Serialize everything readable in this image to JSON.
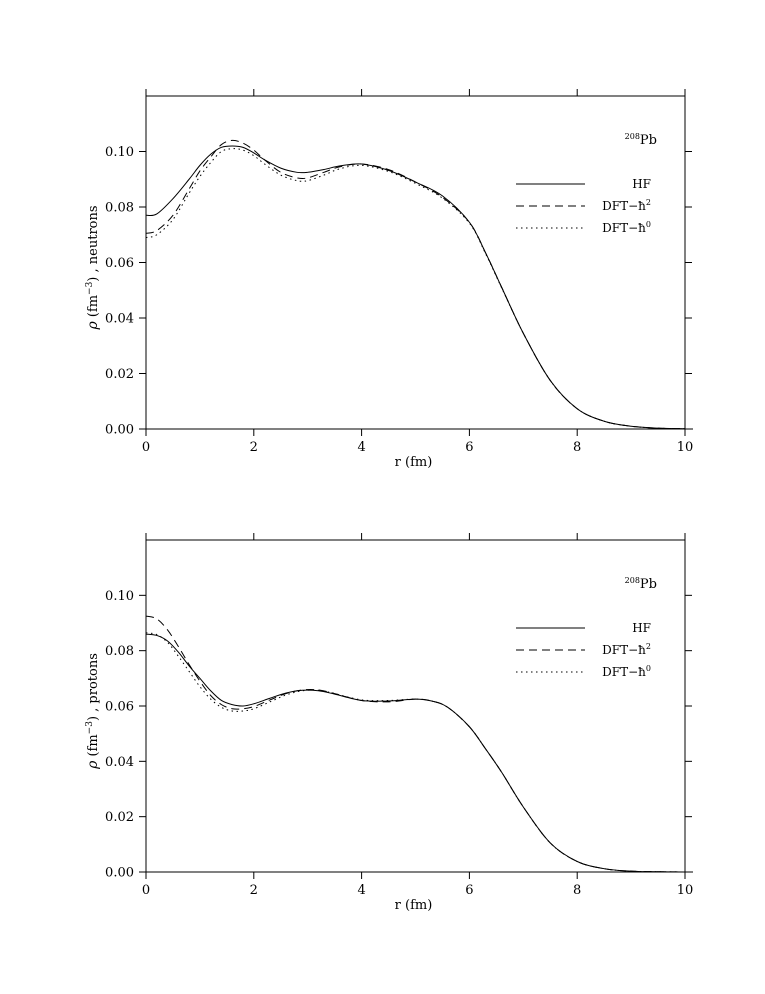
{
  "chart_data": [
    {
      "type": "line",
      "panel": "neutrons",
      "annotation": {
        "mass_number": "208",
        "element": "Pb"
      },
      "xlabel": "r  (fm)",
      "ylabel": {
        "rho": "ρ",
        "unit_open": "(fm",
        "unit_exp": "−3",
        "unit_close": ")",
        "sep": ",",
        "particle": "neutrons"
      },
      "xlim": [
        0,
        10
      ],
      "ylim": [
        0,
        0.12
      ],
      "xticks": [
        "0",
        "2",
        "4",
        "6",
        "8",
        "10"
      ],
      "yticks": [
        "0.00",
        "0.02",
        "0.04",
        "0.06",
        "0.08",
        "0.10"
      ],
      "grid": false,
      "legend_position": "right",
      "series": [
        {
          "name": "HF",
          "legend_base": "HF",
          "legend_exp": "",
          "style": "solid",
          "x": [
            0,
            0.2,
            0.5,
            0.8,
            1.0,
            1.2,
            1.4,
            1.6,
            1.8,
            2.0,
            2.2,
            2.5,
            2.8,
            3.0,
            3.3,
            3.6,
            4.0,
            4.5,
            5.0,
            5.5,
            6.0,
            6.3,
            6.6,
            7.0,
            7.5,
            8.0,
            8.5,
            9.0,
            9.5,
            10.0
          ],
          "y": [
            0.077,
            0.0775,
            0.083,
            0.09,
            0.095,
            0.099,
            0.1015,
            0.102,
            0.1015,
            0.0995,
            0.097,
            0.094,
            0.0925,
            0.0925,
            0.0935,
            0.0948,
            0.0955,
            0.0932,
            0.089,
            0.084,
            0.0745,
            0.0635,
            0.051,
            0.0345,
            0.0175,
            0.0073,
            0.0028,
            0.001,
            0.0003,
            0.0001
          ]
        },
        {
          "name": "DFT-ħ²",
          "legend_base": "DFT−ħ",
          "legend_exp": "2",
          "style": "dashed",
          "x": [
            0,
            0.2,
            0.5,
            0.8,
            1.0,
            1.2,
            1.4,
            1.6,
            1.8,
            2.0,
            2.2,
            2.5,
            2.8,
            3.0,
            3.3,
            3.6,
            4.0,
            4.5,
            5.0,
            5.5,
            6.0,
            6.3,
            6.6,
            7.0,
            7.5,
            8.0,
            8.5,
            9.0,
            9.5,
            10.0
          ],
          "y": [
            0.0705,
            0.0715,
            0.077,
            0.0865,
            0.093,
            0.098,
            0.1025,
            0.104,
            0.103,
            0.1005,
            0.097,
            0.0925,
            0.0905,
            0.0905,
            0.0925,
            0.0945,
            0.0955,
            0.0935,
            0.089,
            0.0835,
            0.0745,
            0.0635,
            0.051,
            0.0345,
            0.0175,
            0.0073,
            0.0028,
            0.001,
            0.0003,
            0.0001
          ]
        },
        {
          "name": "DFT-ħ⁰",
          "legend_base": "DFT−ħ",
          "legend_exp": "0",
          "style": "dotted",
          "x": [
            0,
            0.2,
            0.5,
            0.8,
            1.0,
            1.2,
            1.4,
            1.6,
            1.8,
            2.0,
            2.2,
            2.5,
            2.8,
            3.0,
            3.3,
            3.6,
            4.0,
            4.5,
            5.0,
            5.5,
            6.0,
            6.3,
            6.6,
            7.0,
            7.5,
            8.0,
            8.5,
            9.0,
            9.5,
            10.0
          ],
          "y": [
            0.069,
            0.07,
            0.0755,
            0.085,
            0.091,
            0.096,
            0.1,
            0.101,
            0.1005,
            0.0985,
            0.0955,
            0.0915,
            0.0895,
            0.0895,
            0.0915,
            0.0938,
            0.095,
            0.0928,
            0.0885,
            0.0832,
            0.0742,
            0.0632,
            0.0508,
            0.0345,
            0.0175,
            0.0073,
            0.0028,
            0.001,
            0.0003,
            0.0001
          ]
        }
      ]
    },
    {
      "type": "line",
      "panel": "protons",
      "annotation": {
        "mass_number": "208",
        "element": "Pb"
      },
      "xlabel": "r  (fm)",
      "ylabel": {
        "rho": "ρ",
        "unit_open": "(fm",
        "unit_exp": "−3",
        "unit_close": ")",
        "sep": ",",
        "particle": "protons"
      },
      "xlim": [
        0,
        10
      ],
      "ylim": [
        0,
        0.12
      ],
      "xticks": [
        "0",
        "2",
        "4",
        "6",
        "8",
        "10"
      ],
      "yticks": [
        "0.00",
        "0.02",
        "0.04",
        "0.06",
        "0.08",
        "0.10"
      ],
      "grid": false,
      "legend_position": "right",
      "series": [
        {
          "name": "HF",
          "legend_base": "HF",
          "legend_exp": "",
          "style": "solid",
          "x": [
            0,
            0.2,
            0.4,
            0.6,
            0.8,
            1.0,
            1.2,
            1.4,
            1.6,
            1.8,
            2.0,
            2.3,
            2.6,
            2.9,
            3.2,
            3.5,
            4.0,
            4.5,
            5.0,
            5.3,
            5.6,
            6.0,
            6.3,
            6.6,
            7.0,
            7.5,
            8.0,
            8.5,
            9.0,
            9.5,
            10.0
          ],
          "y": [
            0.086,
            0.0855,
            0.0835,
            0.0795,
            0.0745,
            0.07,
            0.0655,
            0.062,
            0.0605,
            0.06,
            0.0608,
            0.0628,
            0.0647,
            0.0657,
            0.0655,
            0.0643,
            0.062,
            0.0618,
            0.0625,
            0.0618,
            0.0595,
            0.0525,
            0.0445,
            0.036,
            0.0235,
            0.0105,
            0.0038,
            0.0012,
            0.0003,
            0.0001,
            0.0
          ]
        },
        {
          "name": "DFT-ħ²",
          "legend_base": "DFT−ħ",
          "legend_exp": "2",
          "style": "dashed",
          "x": [
            0,
            0.2,
            0.4,
            0.6,
            0.8,
            1.0,
            1.2,
            1.4,
            1.6,
            1.8,
            2.0,
            2.3,
            2.6,
            2.9,
            3.2,
            3.5,
            4.0,
            4.5,
            5.0,
            5.3,
            5.6,
            6.0,
            6.3,
            6.6,
            7.0,
            7.5,
            8.0,
            8.5,
            9.0,
            9.5,
            10.0
          ],
          "y": [
            0.0925,
            0.0915,
            0.0875,
            0.0815,
            0.075,
            0.069,
            0.0638,
            0.0605,
            0.059,
            0.059,
            0.0598,
            0.0622,
            0.0645,
            0.0658,
            0.0658,
            0.0645,
            0.062,
            0.0615,
            0.0625,
            0.0618,
            0.0595,
            0.0525,
            0.0445,
            0.036,
            0.0235,
            0.0105,
            0.0038,
            0.0012,
            0.0003,
            0.0001,
            0.0
          ]
        },
        {
          "name": "DFT-ħ⁰",
          "legend_base": "DFT−ħ",
          "legend_exp": "0",
          "style": "dotted",
          "x": [
            0,
            0.2,
            0.4,
            0.6,
            0.8,
            1.0,
            1.2,
            1.4,
            1.6,
            1.8,
            2.0,
            2.3,
            2.6,
            2.9,
            3.2,
            3.5,
            4.0,
            4.5,
            5.0,
            5.3,
            5.6,
            6.0,
            6.3,
            6.6,
            7.0,
            7.5,
            8.0,
            8.5,
            9.0,
            9.5,
            10.0
          ],
          "y": [
            0.0865,
            0.0858,
            0.083,
            0.078,
            0.0725,
            0.067,
            0.0625,
            0.0595,
            0.0582,
            0.0582,
            0.059,
            0.0615,
            0.064,
            0.0655,
            0.0657,
            0.0645,
            0.0622,
            0.062,
            0.0625,
            0.0618,
            0.0595,
            0.0525,
            0.0445,
            0.036,
            0.0235,
            0.0105,
            0.0038,
            0.0012,
            0.0003,
            0.0001,
            0.0
          ]
        }
      ]
    }
  ]
}
